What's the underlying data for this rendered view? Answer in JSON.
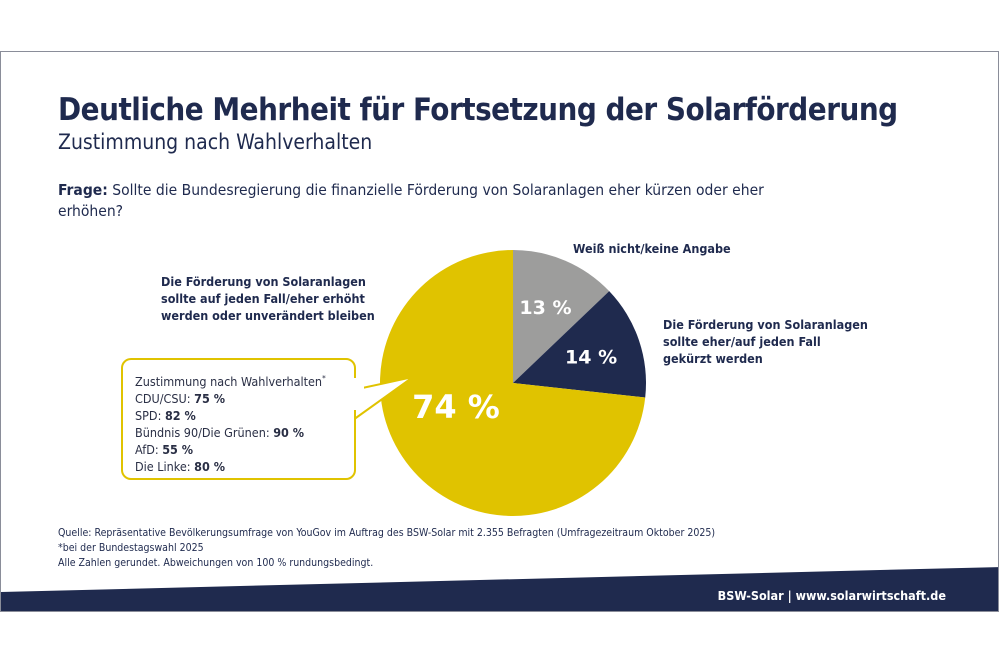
{
  "title": "Deutliche Mehrheit für Fortsetzung der Solarförderung",
  "subtitle": "Zustimmung nach Wahlverhalten",
  "question": {
    "label": "Frage:",
    "text": "Sollte die Bundesregierung die finanzielle Förderung von Solaranlagen eher kürzen oder eher erhöhen?"
  },
  "chart_data": {
    "type": "pie",
    "start": "top",
    "direction": "clockwise",
    "slices": [
      {
        "label": "Weiß nicht/keine Angabe",
        "value": 13,
        "value_label": "13 %",
        "color": "#9d9d9c"
      },
      {
        "label": "Die Förderung von Solaranlagen sollte eher/auf jeden Fall gekürzt werden",
        "value": 14,
        "value_label": "14 %",
        "color": "#1f2a4e"
      },
      {
        "label": "Die Förderung von Solaranlagen sollte auf jeden Fall/eher erhöht werden oder unverändert bleiben",
        "value": 74,
        "value_label": "74 %",
        "color": "#e0c300"
      }
    ]
  },
  "labels": {
    "gray_l1": "Weiß nicht/keine Angabe",
    "navy_l1": "Die Förderung von Solaranlagen",
    "navy_l2": "sollte eher/auf jeden Fall",
    "navy_l3": "gekürzt werden",
    "yellow_l1": "Die Förderung von Solaranlagen",
    "yellow_l2": "sollte auf jeden Fall/eher erhöht",
    "yellow_l3": "werden oder unverändert bleiben"
  },
  "callout": {
    "heading": "Zustimmung nach Wahlverhalten",
    "heading_mark": "*",
    "rows": [
      {
        "party": "CDU/CSU:",
        "value": "75 %"
      },
      {
        "party": "SPD:",
        "value": "82 %"
      },
      {
        "party": "Bündnis 90/Die Grünen:",
        "value": "90 %"
      },
      {
        "party": "AfD:",
        "value": "55 %"
      },
      {
        "party": "Die Linke:",
        "value": "80 %"
      }
    ]
  },
  "footer": {
    "source": "Quelle: Repräsentative Bevölkerungsumfrage von YouGov im Auftrag des BSW-Solar mit 2.355 Befragten (Umfragezeitraum Oktober 2025)",
    "footnote": "*bei der Bundestagswahl 2025",
    "rounding": "Alle Zahlen gerundet. Abweichungen von 100 % rundungsbedingt.",
    "brand": "BSW-Solar | www.solarwirtschaft.de"
  }
}
